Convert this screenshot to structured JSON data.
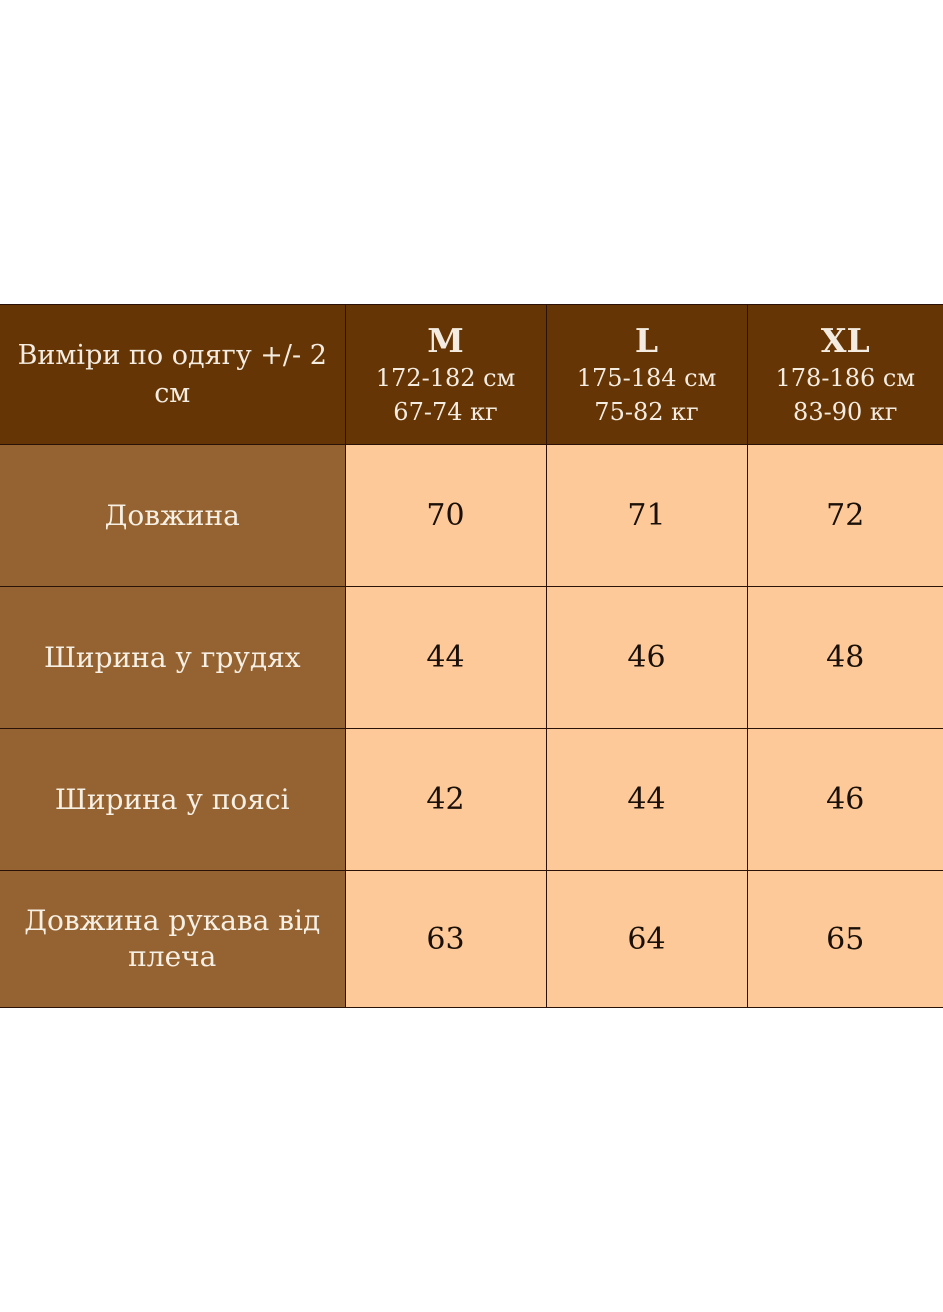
{
  "table": {
    "corner_label": "Виміри по одягу +/- 2 см",
    "columns": [
      {
        "size": "M",
        "height": "172-182 см",
        "weight": "67-74 кг"
      },
      {
        "size": "L",
        "height": "175-184 см",
        "weight": "75-82 кг"
      },
      {
        "size": "XL",
        "height": "178-186 см",
        "weight": "83-90 кг"
      }
    ],
    "rows": [
      {
        "label": "Довжина",
        "values": [
          "70",
          "71",
          "72"
        ]
      },
      {
        "label": "Ширина у грудях",
        "values": [
          "44",
          "46",
          "48"
        ]
      },
      {
        "label": "Ширина у поясі",
        "values": [
          "42",
          "44",
          "46"
        ]
      },
      {
        "label": "Довжина рукава від плеча",
        "values": [
          "63",
          "64",
          "65"
        ]
      }
    ]
  },
  "colors": {
    "header_bg": "#653505",
    "label_bg": "#956332",
    "value_bg": "#fdc998",
    "border": "#2a1208"
  }
}
